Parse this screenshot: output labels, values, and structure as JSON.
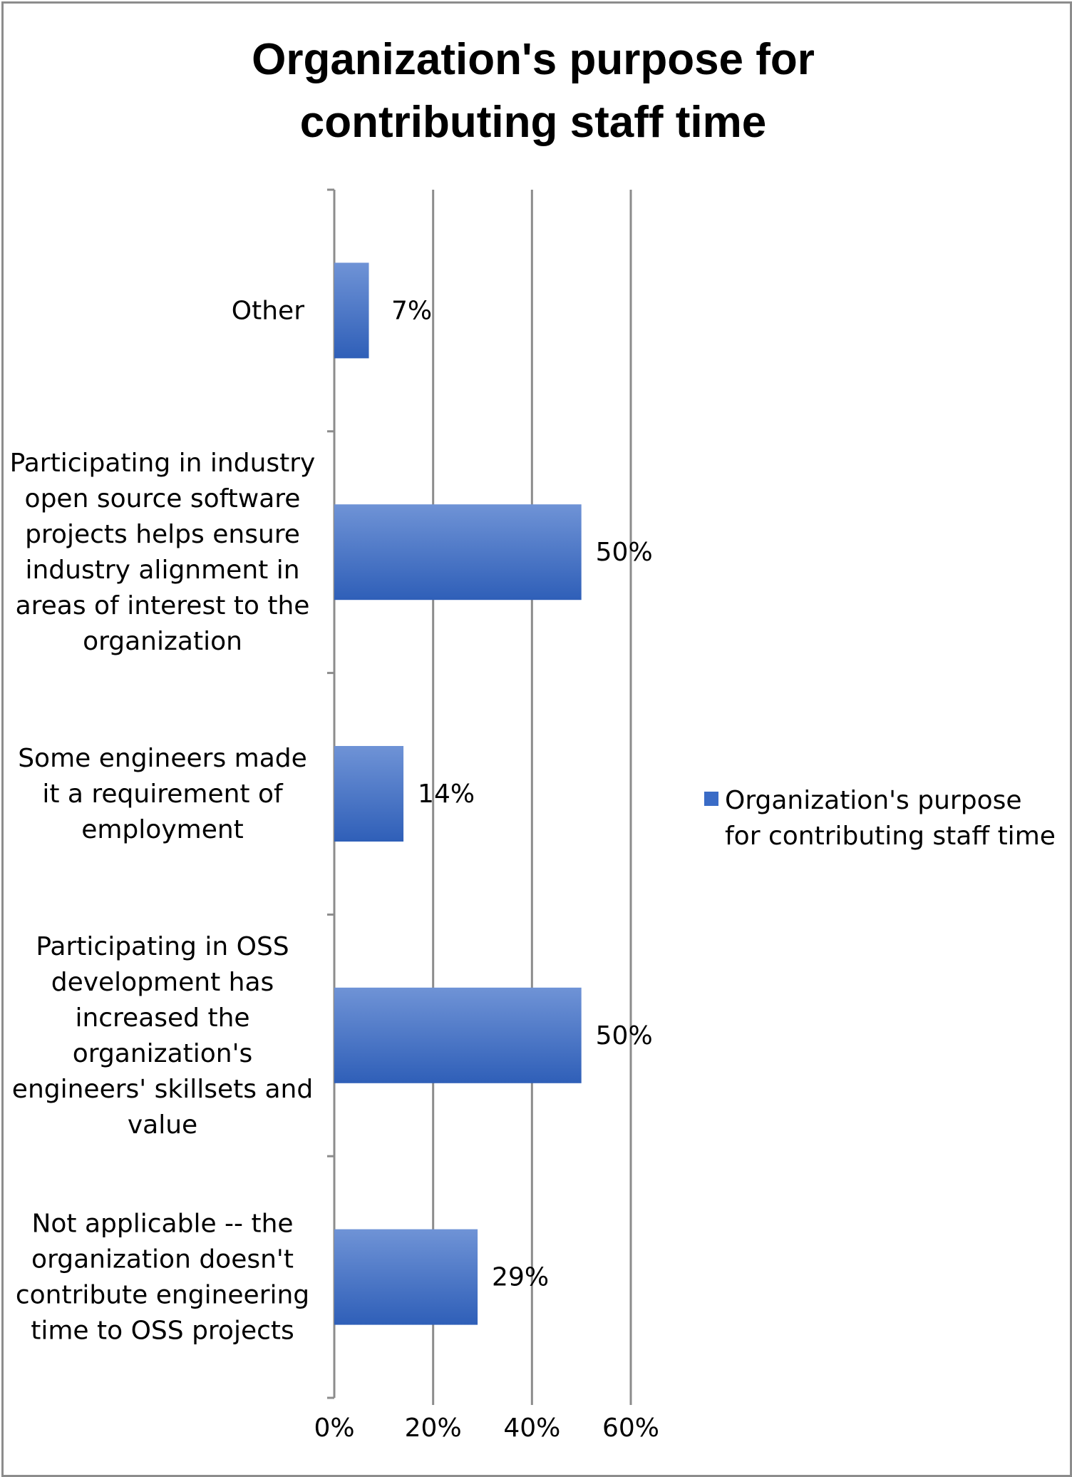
{
  "chart_data": {
    "type": "bar",
    "orientation": "horizontal",
    "title": [
      "Organization's purpose for",
      "contributing staff time"
    ],
    "categories": [
      [
        "Other"
      ],
      [
        "Participating in industry",
        "open source software",
        "projects helps ensure",
        "industry alignment in",
        "areas of interest to the",
        "organization"
      ],
      [
        "Some engineers made",
        "it a requirement of",
        "employment"
      ],
      [
        "Participating in OSS",
        "development has",
        "increased the",
        "organization's",
        "engineers' skillsets and",
        "value"
      ],
      [
        "Not applicable -- the",
        "organization doesn't",
        "contribute engineering",
        "time to OSS projects"
      ]
    ],
    "series": [
      {
        "name": [
          "Organization's purpose",
          "for contributing staff time"
        ],
        "values": [
          7,
          50,
          14,
          50,
          29
        ],
        "labels": [
          "7%",
          "50%",
          "14%",
          "50%",
          "29%"
        ],
        "color": "#3a6bc6"
      }
    ],
    "xlim": [
      0,
      60
    ],
    "ticks": [
      0,
      20,
      40,
      60
    ],
    "tick_labels": [
      "0%",
      "20%",
      "40%",
      "60%"
    ],
    "grid": true,
    "legend": "right"
  }
}
